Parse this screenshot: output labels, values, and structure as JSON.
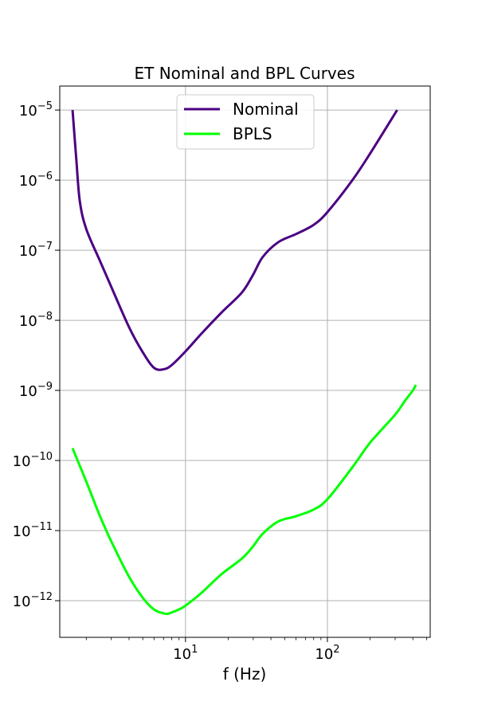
{
  "chart_data": {
    "type": "line",
    "title": "ET Nominal and BPL Curves",
    "xlabel": "f (Hz)",
    "ylabel": "",
    "xscale": "log",
    "yscale": "log",
    "xlim": [
      1.3,
      530
    ],
    "ylim": [
      3e-13,
      2.2e-05
    ],
    "grid": true,
    "legend_position": "top-center",
    "x_ticks": [
      {
        "value": 10,
        "base": "10",
        "exp": "1"
      },
      {
        "value": 100,
        "base": "10",
        "exp": "2"
      }
    ],
    "y_ticks": [
      {
        "value": 1e-05,
        "base": "10",
        "exp": "−5"
      },
      {
        "value": 1e-06,
        "base": "10",
        "exp": "−6"
      },
      {
        "value": 1e-07,
        "base": "10",
        "exp": "−7"
      },
      {
        "value": 1e-08,
        "base": "10",
        "exp": "−8"
      },
      {
        "value": 1e-09,
        "base": "10",
        "exp": "−9"
      },
      {
        "value": 1e-10,
        "base": "10",
        "exp": "−10"
      },
      {
        "value": 1e-11,
        "base": "10",
        "exp": "−11"
      },
      {
        "value": 1e-12,
        "base": "10",
        "exp": "−12"
      }
    ],
    "series": [
      {
        "name": "Nominal",
        "color": "#4b0082",
        "x": [
          1.6,
          1.7,
          1.8,
          2.0,
          2.5,
          3.0,
          4.0,
          5.0,
          6.0,
          7.0,
          8.0,
          10.0,
          13.0,
          18.0,
          25.0,
          30.0,
          35.0,
          45.0,
          60.0,
          80.0,
          100.0,
          150.0,
          200.0,
          310.0
        ],
        "y": [
          1e-05,
          2e-06,
          5e-07,
          2e-07,
          7e-08,
          3e-08,
          8e-09,
          3.5e-09,
          2.1e-09,
          2e-09,
          2.3e-09,
          3.6e-09,
          6.5e-09,
          1.3e-08,
          2.5e-08,
          4.5e-08,
          8e-08,
          1.3e-07,
          1.7e-07,
          2.3e-07,
          3.5e-07,
          1e-06,
          2.4e-06,
          1e-05
        ]
      },
      {
        "name": "BPLS",
        "color": "#00ff00",
        "x": [
          1.6,
          2.0,
          2.5,
          3.0,
          4.0,
          5.0,
          6.0,
          7.0,
          7.5,
          8.0,
          9.0,
          10.0,
          13.0,
          18.0,
          25.0,
          30.0,
          35.0,
          45.0,
          60.0,
          80.0,
          100.0,
          150.0,
          200.0,
          300.0,
          350.0,
          400.0,
          420.0
        ],
        "y": [
          1.5e-10,
          5e-11,
          1.6e-11,
          7e-12,
          2.2e-12,
          1.1e-12,
          7.5e-13,
          6.6e-13,
          6.5e-13,
          6.8e-13,
          7.5e-13,
          8.5e-13,
          1.3e-12,
          2.4e-12,
          4e-12,
          6e-12,
          9e-12,
          1.35e-11,
          1.6e-11,
          2e-11,
          2.8e-11,
          8e-11,
          1.8e-10,
          4.5e-10,
          7e-10,
          1e-09,
          1.2e-09
        ]
      }
    ]
  }
}
